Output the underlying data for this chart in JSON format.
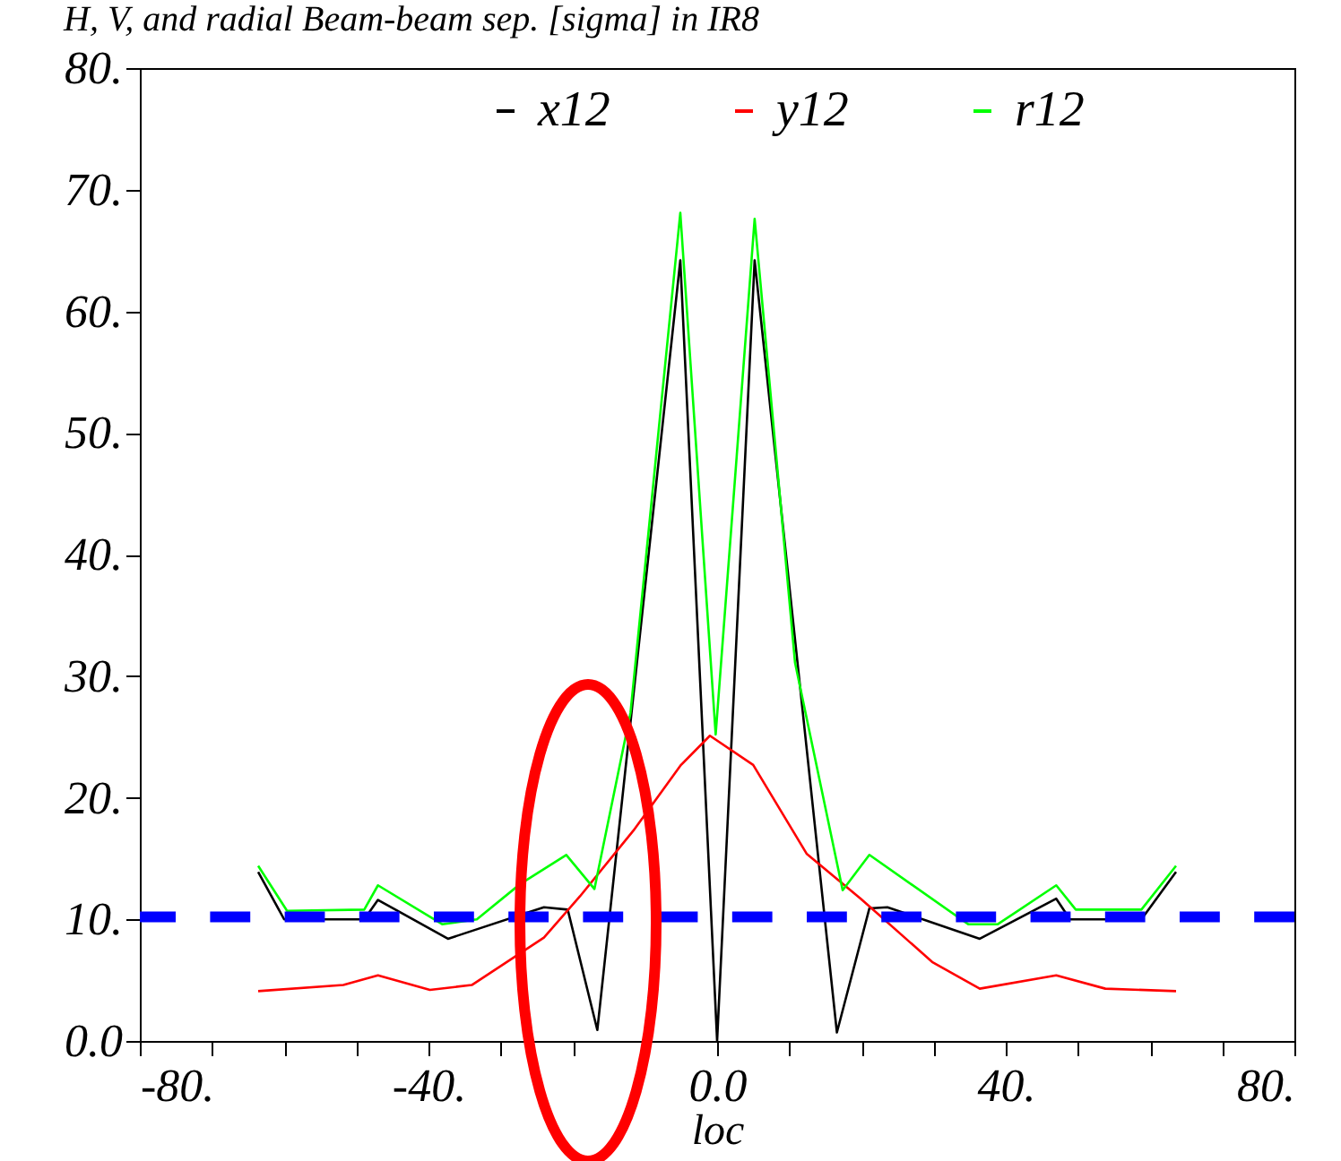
{
  "chart_data": {
    "type": "line",
    "title": "H, V, and radial Beam-beam sep. [sigma] in IR8",
    "xlabel": "loc",
    "xlim": [
      -80,
      80
    ],
    "xticks": [
      {
        "value": -80,
        "label": "-80."
      },
      {
        "value": -70,
        "label": null
      },
      {
        "value": -60,
        "label": null
      },
      {
        "value": -50,
        "label": null
      },
      {
        "value": -40,
        "label": "-40."
      },
      {
        "value": -30,
        "label": null
      },
      {
        "value": -20,
        "label": null
      },
      {
        "value": -10,
        "label": null
      },
      {
        "value": 0,
        "label": "0.0"
      },
      {
        "value": 10,
        "label": null
      },
      {
        "value": 20,
        "label": null
      },
      {
        "value": 30,
        "label": null
      },
      {
        "value": 40,
        "label": "40."
      },
      {
        "value": 50,
        "label": null
      },
      {
        "value": 60,
        "label": null
      },
      {
        "value": 70,
        "label": null
      },
      {
        "value": 80,
        "label": "80."
      }
    ],
    "ylim": [
      0,
      80
    ],
    "yticks": [
      {
        "value": 0,
        "label": "0.0"
      },
      {
        "value": 10,
        "label": "10."
      },
      {
        "value": 20,
        "label": "20."
      },
      {
        "value": 30,
        "label": "30."
      },
      {
        "value": 40,
        "label": "40."
      },
      {
        "value": 50,
        "label": "50."
      },
      {
        "value": 60,
        "label": "60."
      },
      {
        "value": 70,
        "label": "70."
      },
      {
        "value": 80,
        "label": "80."
      }
    ],
    "grid": false,
    "legend": "top",
    "line_style": "solid",
    "ref_lines": [
      {
        "axis": "y",
        "value": 10.2,
        "color": "#0000ff",
        "line_style": "dashed"
      }
    ],
    "series": [
      {
        "name": "x12",
        "color": "#000000",
        "x": [
          -63.6,
          -60,
          -48.9,
          -47,
          -37.3,
          -24,
          -20.7,
          -16.6,
          -5.1,
          0,
          5.2,
          16.6,
          21.1,
          23.6,
          36.4,
          47,
          48.9,
          58.8,
          63.6
        ],
        "values": [
          13.9,
          10,
          10,
          11.6,
          8.4,
          11,
          10.8,
          0.9,
          64.2,
          0,
          64.2,
          0.7,
          10.9,
          11,
          8.4,
          11.7,
          10,
          10,
          13.9
        ]
      },
      {
        "name": "y12",
        "color": "#ff0000",
        "x": [
          -63.6,
          -51.8,
          -47,
          -39.8,
          -34,
          -24,
          -19,
          -11.6,
          -5,
          -1,
          5,
          12.4,
          19.9,
          29.8,
          36.4,
          47,
          53.8,
          63.6
        ],
        "values": [
          4.1,
          4.6,
          5.4,
          4.2,
          4.6,
          8.5,
          11.9,
          17.3,
          22.7,
          25.1,
          22.7,
          15.4,
          11.7,
          6.5,
          4.3,
          5.4,
          4.3,
          4.1
        ]
      },
      {
        "name": "r12",
        "color": "#00ff00",
        "x": [
          -63.6,
          -59.6,
          -48.9,
          -47,
          -38.1,
          -33.3,
          -27.3,
          -20.9,
          -17,
          -12,
          -5.1,
          -0.2,
          5.2,
          10.8,
          17.4,
          21.1,
          34.8,
          38.9,
          47,
          49.7,
          58.8,
          63.6
        ],
        "values": [
          14.4,
          10.7,
          10.8,
          12.8,
          9.6,
          10,
          12.9,
          15.3,
          12.5,
          27,
          68.1,
          25.2,
          67.6,
          31.1,
          12.4,
          15.3,
          9.6,
          9.6,
          12.8,
          10.8,
          10.8,
          14.4
        ]
      }
    ]
  }
}
